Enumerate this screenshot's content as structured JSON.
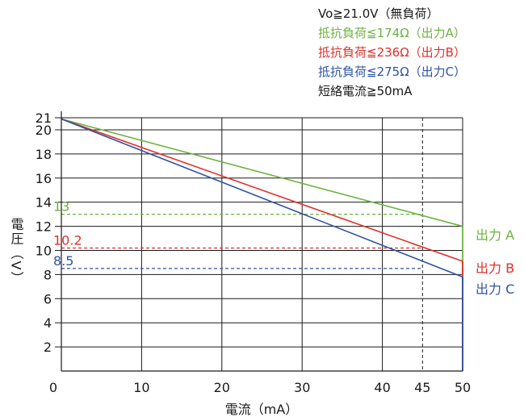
{
  "chart_data": {
    "type": "line",
    "xlabel": "電流（mA）",
    "ylabel": "電圧（V）",
    "xlim": [
      0,
      50
    ],
    "ylim": [
      0,
      21
    ],
    "xticks": [
      0,
      10,
      20,
      30,
      40,
      45,
      50
    ],
    "yticks": [
      2,
      4,
      6,
      8,
      10,
      12,
      14,
      16,
      18,
      20,
      21
    ],
    "grid": true,
    "legend_position": "top-right",
    "legend_notes": [
      {
        "text": "Vo≧21.0V（無負荷）",
        "color": "#1a1a1a"
      },
      {
        "text": "抵抗負荷≦174Ω（出力A）",
        "color": "#6cb33e"
      },
      {
        "text": "抵抗負荷≦236Ω（出力B）",
        "color": "#e0302b"
      },
      {
        "text": "抵抗負荷≦275Ω（出力C）",
        "color": "#2f54a3"
      },
      {
        "text": "短絡電流≧50mA",
        "color": "#1a1a1a"
      }
    ],
    "series": [
      {
        "name": "出力 A",
        "color": "#6cb33e",
        "x": [
          0,
          50
        ],
        "y": [
          20.9,
          12.0
        ],
        "vertical_at_x": 50
      },
      {
        "name": "出力 B",
        "color": "#e0302b",
        "x": [
          0,
          50
        ],
        "y": [
          20.9,
          9.1
        ],
        "vertical_at_x": 50
      },
      {
        "name": "出力 C",
        "color": "#2f54a3",
        "x": [
          0,
          50
        ],
        "y": [
          20.9,
          7.8
        ],
        "vertical_at_x": 50
      }
    ],
    "reference_lines": [
      {
        "y": 13,
        "label": "13",
        "color": "#6cb33e"
      },
      {
        "y": 10.2,
        "label": "10.2",
        "color": "#e0302b"
      },
      {
        "y": 8.5,
        "label": "8.5",
        "color": "#2f54a3"
      }
    ],
    "reference_vertical": {
      "x": 45,
      "style": "dashed",
      "color": "#1a1a1a"
    }
  }
}
